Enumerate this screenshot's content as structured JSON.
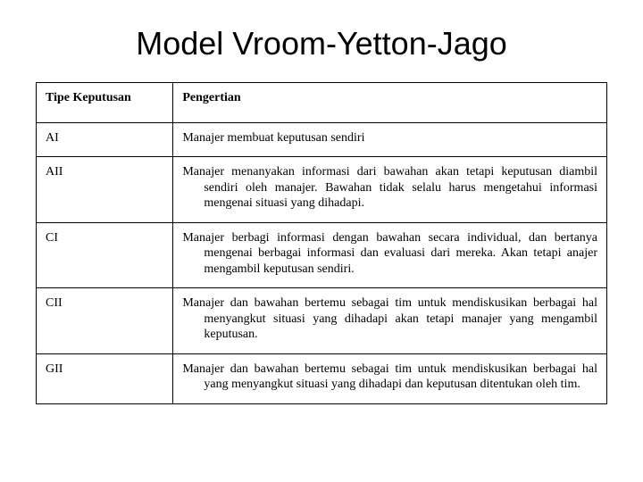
{
  "title": "Model Vroom-Yetton-Jago",
  "table": {
    "headers": {
      "col1": "Tipe Keputusan",
      "col2": "Pengertian"
    },
    "rows": [
      {
        "type": "AI",
        "desc": "Manajer membuat keputusan sendiri"
      },
      {
        "type": "AII",
        "desc": "Manajer menanyakan informasi dari bawahan akan tetapi keputusan diambil sendiri oleh manajer. Bawahan tidak selalu harus mengetahui informasi mengenai situasi yang dihadapi."
      },
      {
        "type": "CI",
        "desc": "Manajer berbagi informasi dengan bawahan secara individual, dan bertanya mengenai berbagai informasi dan evaluasi dari mereka. Akan tetapi anajer mengambil keputusan sendiri."
      },
      {
        "type": "CII",
        "desc": "Manajer dan bawahan bertemu sebagai tim untuk mendiskusikan berbagai hal menyangkut situasi yang dihadapi akan tetapi manajer yang mengambil keputusan."
      },
      {
        "type": "GII",
        "desc": "Manajer dan bawahan bertemu sebagai tim untuk mendiskusikan berbagai hal yang menyangkut situasi yang dihadapi dan keputusan ditentukan oleh tim."
      }
    ]
  },
  "style": {
    "background_color": "#ffffff",
    "text_color": "#000000",
    "border_color": "#000000",
    "title_font_family": "Arial",
    "title_font_size_pt": 28,
    "body_font_family": "Times New Roman",
    "body_font_size_pt": 11,
    "col1_width_pct": 24,
    "col2_width_pct": 76
  }
}
